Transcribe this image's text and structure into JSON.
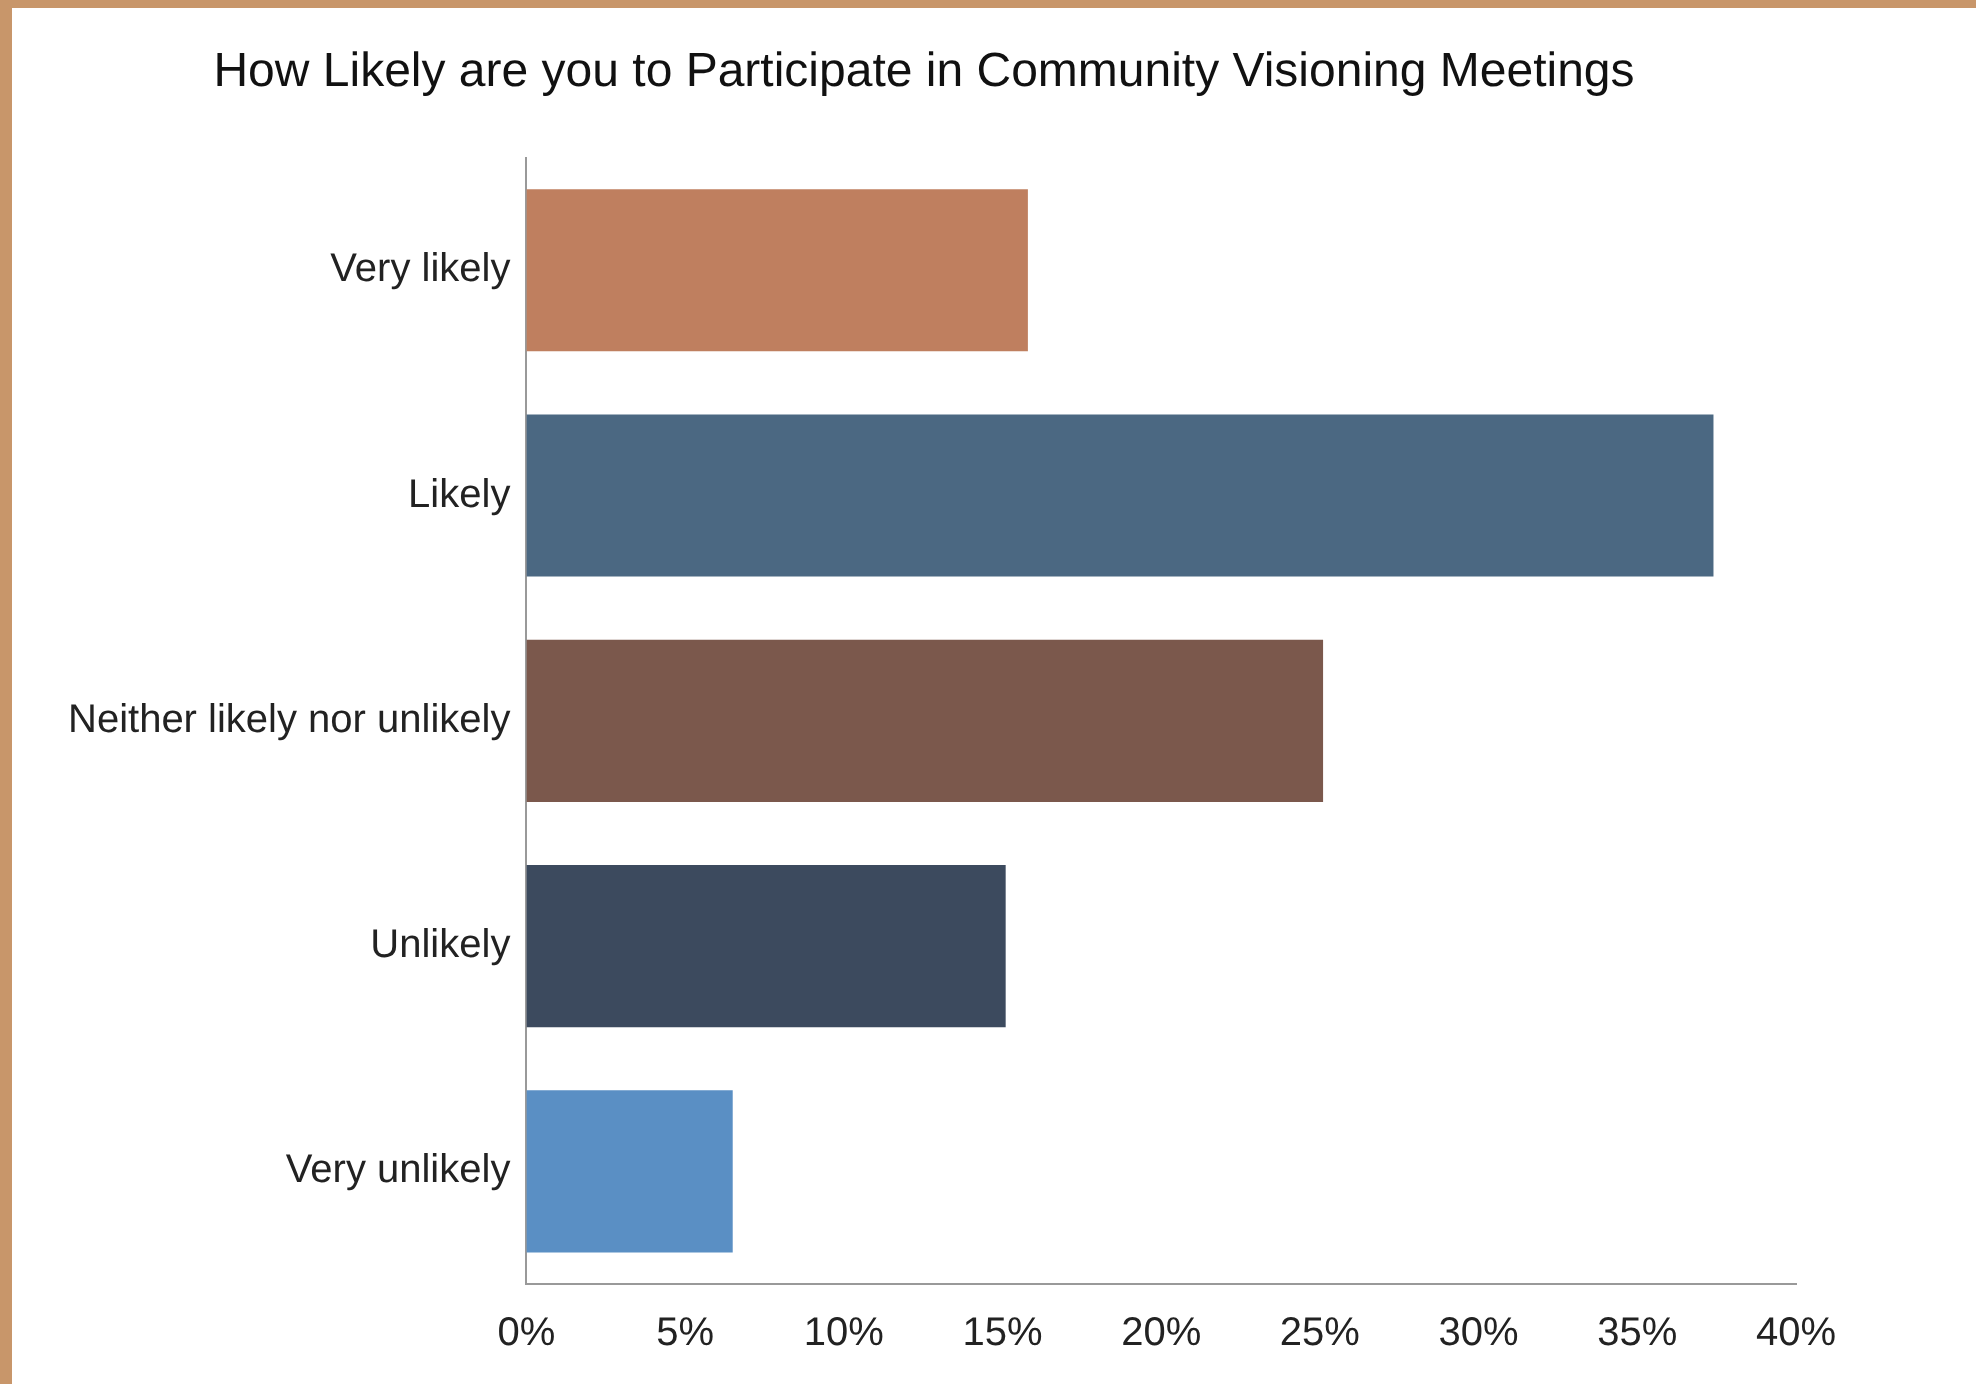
{
  "chart_data": {
    "type": "bar",
    "orientation": "horizontal",
    "title": "How Likely are you to Participate in Community Visioning Meetings",
    "categories": [
      "Very likely",
      "Likely",
      "Neither likely nor unlikely",
      "Unlikely",
      "Very unlikely"
    ],
    "values": [
      15.8,
      37.4,
      25.1,
      15.1,
      6.5
    ],
    "colors": [
      "#bf7f5f",
      "#4b6882",
      "#7b584c",
      "#3c4a5e",
      "#5a8fc4"
    ],
    "xlim": [
      0,
      40
    ],
    "xticks": [
      {
        "value": 0,
        "label": "0%"
      },
      {
        "value": 5,
        "label": "5%"
      },
      {
        "value": 10,
        "label": "10%"
      },
      {
        "value": 15,
        "label": "15%"
      },
      {
        "value": 20,
        "label": "20%"
      },
      {
        "value": 25,
        "label": "25%"
      },
      {
        "value": 30,
        "label": "30%"
      },
      {
        "value": 35,
        "label": "35%"
      },
      {
        "value": 40,
        "label": "40%"
      }
    ],
    "grid": false,
    "legend": false
  }
}
